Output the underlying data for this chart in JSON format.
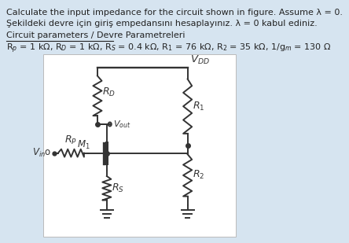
{
  "bg_color": "#d6e4f0",
  "circuit_bg": "#ffffff",
  "text_color": "#222222",
  "line1": "Calculate the input impedance for the circuit shown in figure. Assume λ = 0.",
  "line2": "Şekildeki devre için giriş empedansını hesaplayınız. λ = 0 kabul ediniz.",
  "line3": "Circuit parameters / Devre Parametreleri",
  "param_str": "R$_p$ = 1 kΩ, R$_D$ = 1 kΩ, R$_S$ = 0.4 kΩ, R$_1$ = 76 kΩ, R$_2$ = 35 kΩ, 1/g$_m$ = 130 Ω",
  "vdd_label": "$V_{DD}$",
  "rd_label": "$R_D$",
  "r1_label": "$R_1$",
  "vout_label": "$V_{out}$",
  "m1_label": "$M_1$",
  "rp_label": "$R_P$",
  "vin_label": "$V_{in}$",
  "rs_label": "$R_S$",
  "r2_label": "$R_2$",
  "line_color": "#333333",
  "lw": 1.4
}
